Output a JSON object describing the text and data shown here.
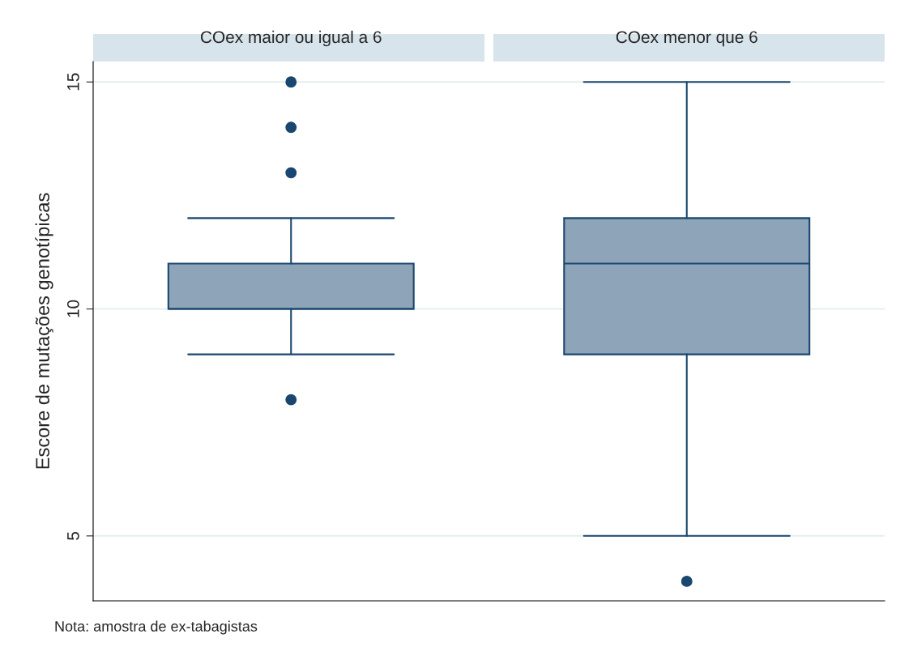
{
  "chart_data": {
    "type": "box",
    "categories": [
      "COex maior ou igual a 6",
      "COex menor que 6"
    ],
    "ylabel": "Escore de mutações genotípicas",
    "ylim": [
      3.57,
      15.45
    ],
    "yticks": [
      5,
      10,
      15
    ],
    "grid": "y",
    "annotations": [
      "Nota: amostra de ex-tabagistas"
    ],
    "series": [
      {
        "color": "#8ea4b9",
        "boxes": [
          {
            "low": 9,
            "q1": 10,
            "median": 10,
            "q3": 11,
            "high": 12,
            "outliers": [
              8,
              13,
              14,
              15
            ]
          },
          {
            "low": 5,
            "q1": 9,
            "median": 11,
            "q3": 12,
            "high": 15,
            "outliers": [
              4
            ]
          }
        ]
      }
    ]
  }
}
